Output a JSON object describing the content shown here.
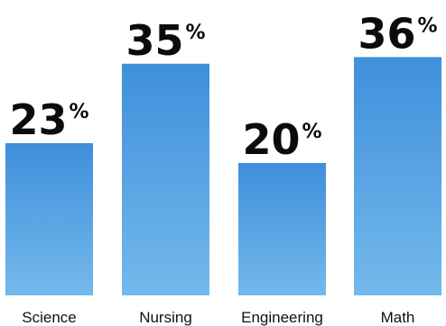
{
  "chart_data": {
    "type": "bar",
    "categories": [
      "Science",
      "Nursing",
      "Engineering",
      "Math"
    ],
    "values": [
      23,
      35,
      20,
      36
    ],
    "data_labels": [
      "23",
      "35",
      "20",
      "36"
    ],
    "value_suffix": "%",
    "title": "",
    "xlabel": "",
    "ylabel": "",
    "ylim": [
      0,
      40
    ],
    "grid": false,
    "legend": "none",
    "colors": {
      "bar_top": "#3f8fdb",
      "bar_bottom": "#74b9ec",
      "value_label": "#0b0b0b",
      "category_label": "#111111"
    }
  }
}
